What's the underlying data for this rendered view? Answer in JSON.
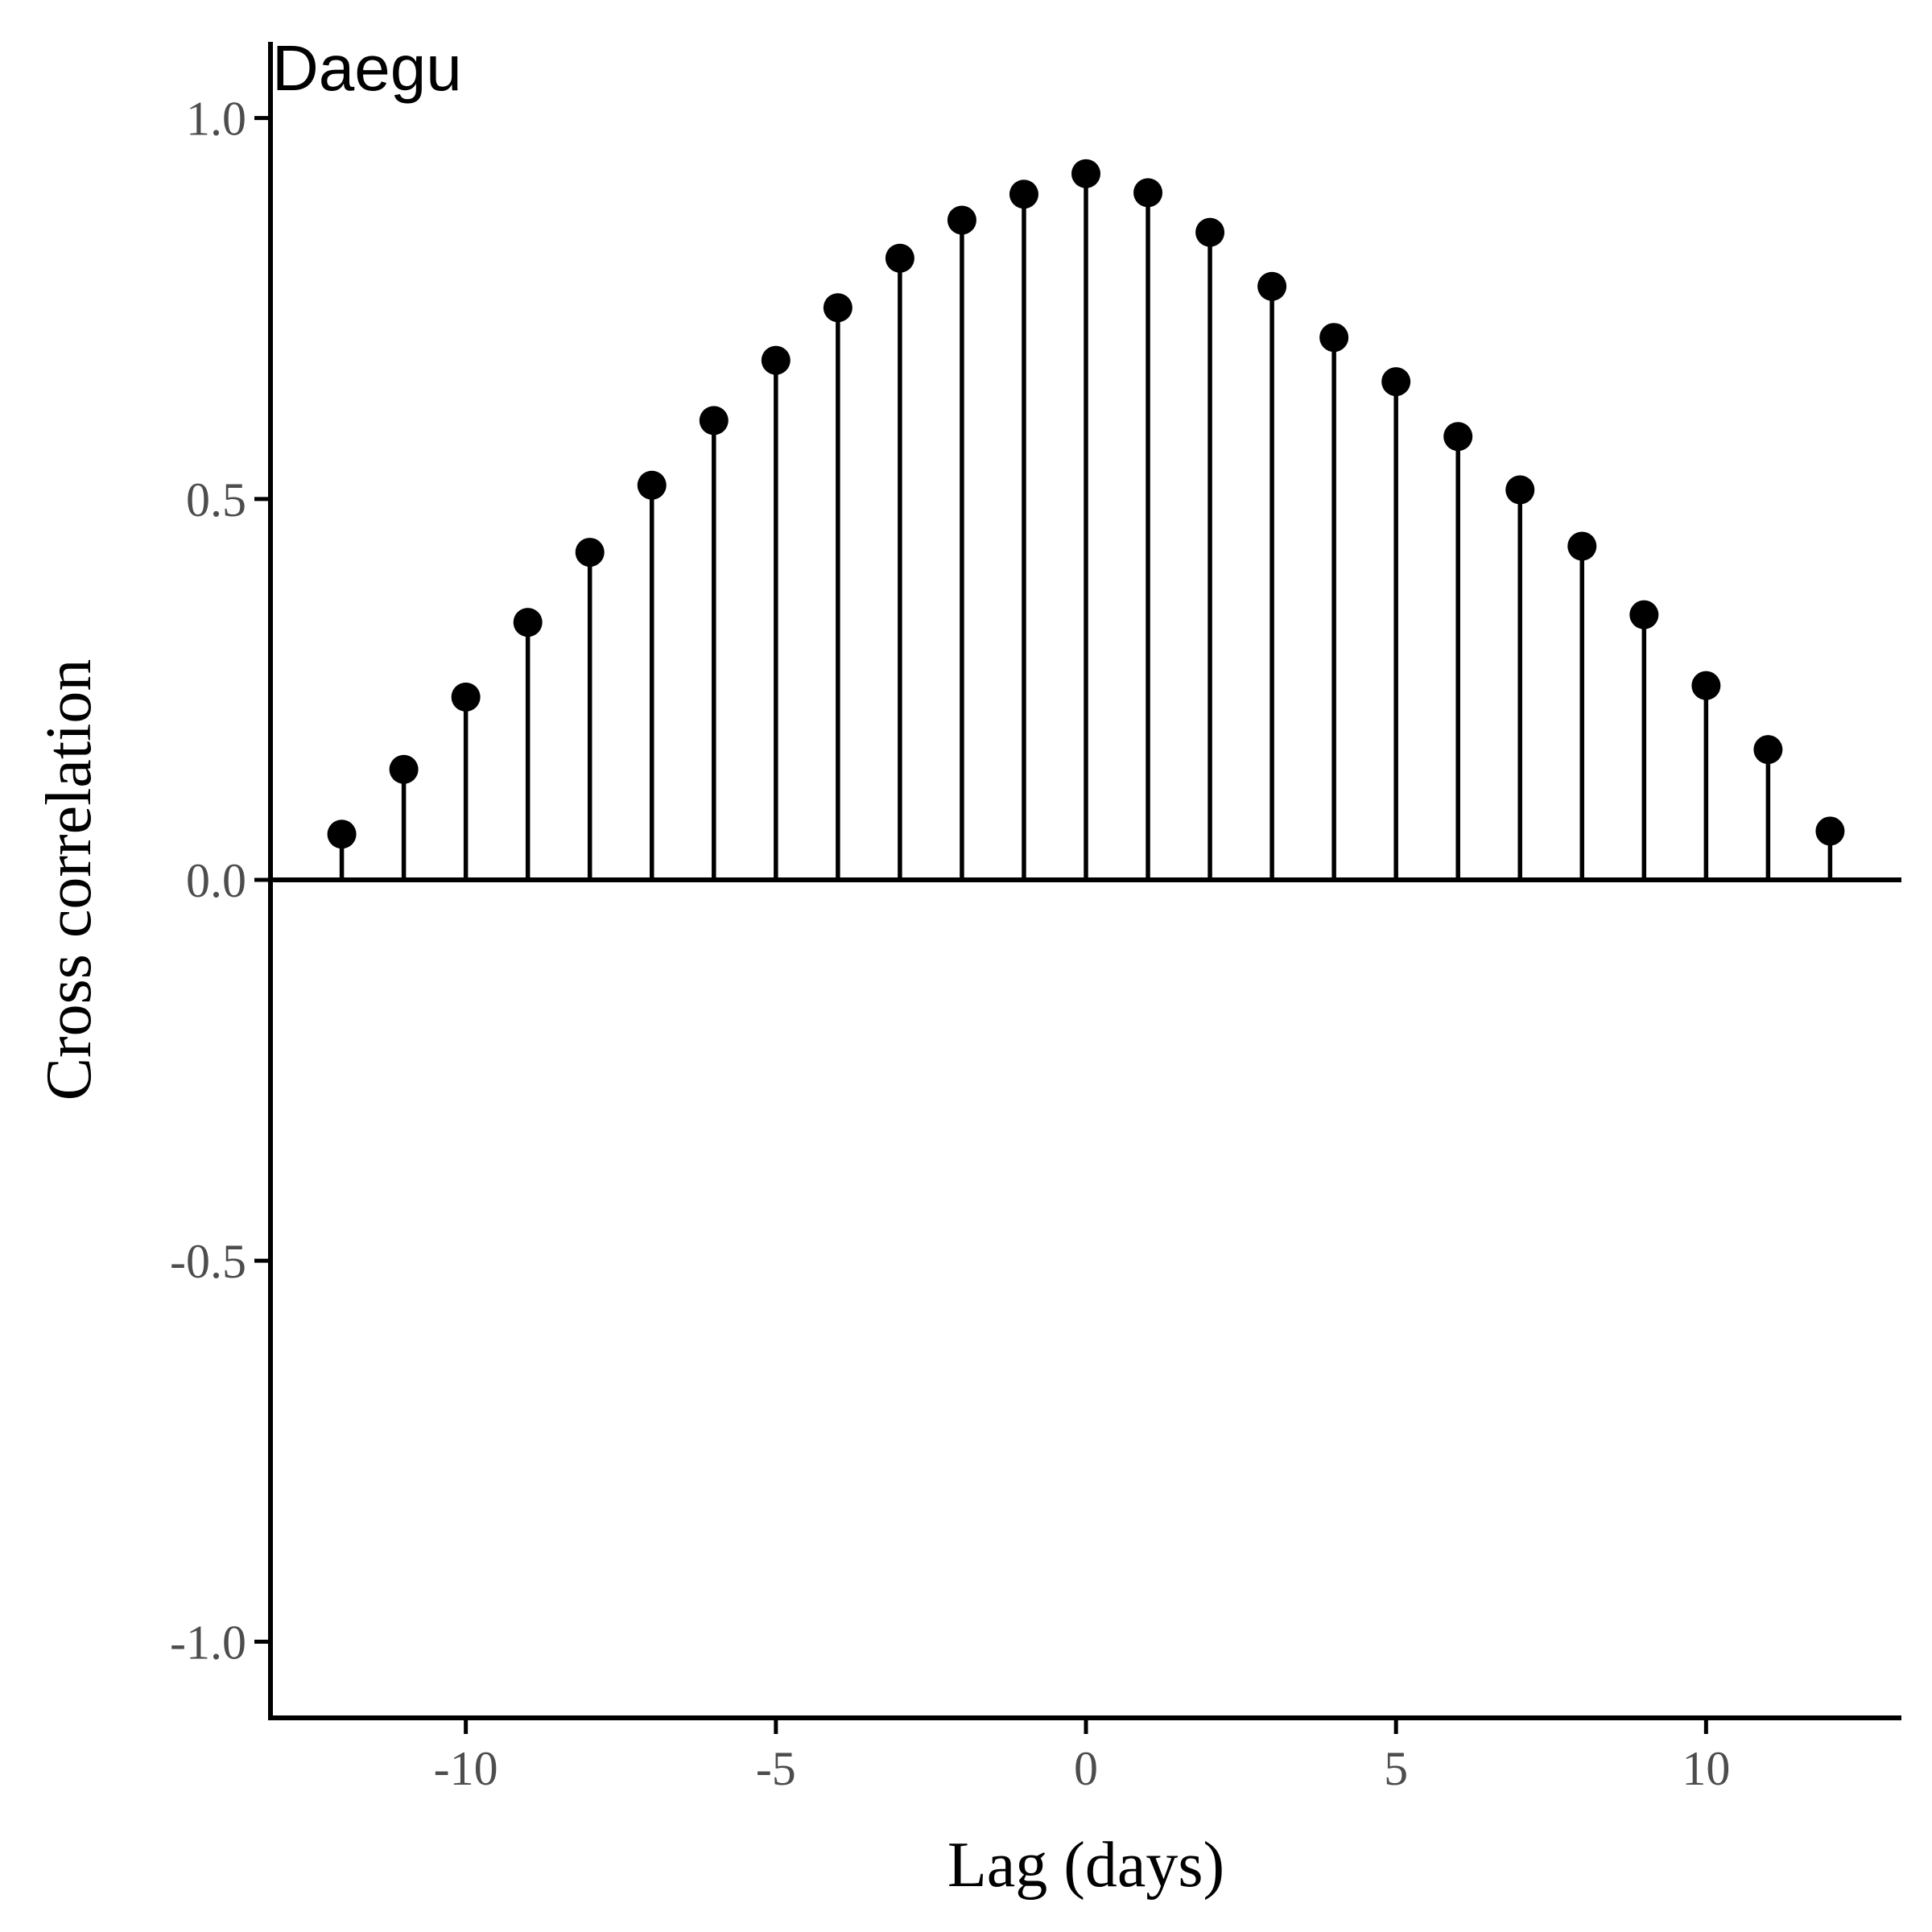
{
  "chart_data": {
    "type": "scatter",
    "style": "lollipop",
    "title": "Daegu",
    "xlabel": "Lag (days)",
    "ylabel": "Cross correlation",
    "x": [
      -12,
      -11,
      -10,
      -9,
      -8,
      -7,
      -6,
      -5,
      -4,
      -3,
      -2,
      -1,
      0,
      1,
      2,
      3,
      4,
      5,
      6,
      7,
      8,
      9,
      10,
      11,
      12
    ],
    "series": [
      {
        "values": [
          0.06,
          0.145,
          0.24,
          0.338,
          0.43,
          0.518,
          0.603,
          0.682,
          0.751,
          0.816,
          0.866,
          0.9,
          0.927,
          0.902,
          0.85,
          0.779,
          0.712,
          0.654,
          0.582,
          0.512,
          0.438,
          0.348,
          0.255,
          0.171,
          0.064
        ]
      }
    ],
    "xlim": [
      -13.15,
      13.15
    ],
    "ylim": [
      -1.1,
      1.1
    ],
    "xticks": [
      "-10",
      "-5",
      "0",
      "5",
      "10"
    ],
    "yticks": [
      "1.0",
      "0.5",
      "0.0",
      "-0.5",
      "-1.0"
    ],
    "baseline": 0,
    "grid": false,
    "colors": {
      "marks": "#000000",
      "axis": "#000000",
      "tick_labels": "#4d4d4d"
    }
  }
}
